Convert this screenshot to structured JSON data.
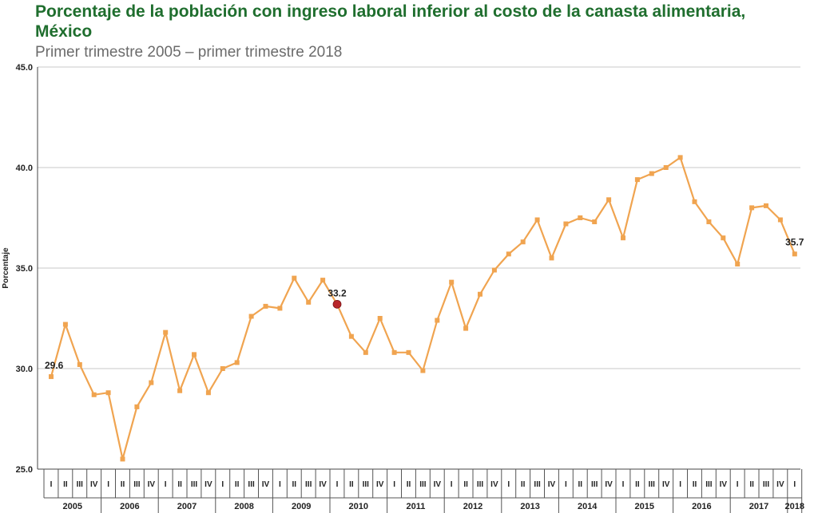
{
  "header": {
    "title": "Porcentaje de la población con ingreso laboral inferior al costo de la canasta alimentaria, México",
    "subtitle": "Primer trimestre 2005 – primer trimestre 2018"
  },
  "colors": {
    "title": "#1f6e2e",
    "line": "#f0a450",
    "grid": "#c8c8c8",
    "highlight_point": "#b8262a"
  },
  "chart_data": {
    "type": "line",
    "title": "Porcentaje de la población con ingreso laboral inferior al costo de la canasta alimentaria, México",
    "subtitle": "Primer trimestre 2005 – primer trimestre 2018",
    "xlabel": "",
    "ylabel": "Porcentaje",
    "ylim": [
      25,
      45
    ],
    "yticks": [
      "25.0",
      "30.0",
      "35.0",
      "40.0",
      "45.0"
    ],
    "grid": "horizontal",
    "years": [
      "2005",
      "2006",
      "2007",
      "2008",
      "2009",
      "2010",
      "2011",
      "2012",
      "2013",
      "2014",
      "2015",
      "2016",
      "2017",
      "2018"
    ],
    "quarters": [
      "I",
      "II",
      "III",
      "IV",
      "I",
      "II",
      "III",
      "IV",
      "I",
      "II",
      "III",
      "IV",
      "I",
      "II",
      "III",
      "IV",
      "I",
      "II",
      "III",
      "IV",
      "I",
      "II",
      "III",
      "IV",
      "I",
      "II",
      "III",
      "IV",
      "I",
      "II",
      "III",
      "IV",
      "I",
      "II",
      "III",
      "IV",
      "I",
      "II",
      "III",
      "IV",
      "I",
      "II",
      "III",
      "IV",
      "I",
      "II",
      "III",
      "IV",
      "I",
      "II",
      "III",
      "IV",
      "I"
    ],
    "series": [
      {
        "values": [
          29.6,
          32.2,
          30.2,
          28.7,
          28.8,
          25.5,
          28.1,
          29.3,
          31.8,
          28.9,
          30.7,
          28.8,
          30.0,
          30.3,
          32.6,
          33.1,
          33.0,
          34.5,
          33.3,
          34.4,
          33.2,
          31.6,
          30.8,
          32.5,
          30.8,
          30.8,
          29.9,
          32.4,
          34.3,
          32.0,
          33.7,
          34.9,
          35.7,
          36.3,
          37.4,
          35.5,
          37.2,
          37.5,
          37.3,
          38.4,
          36.5,
          39.4,
          39.7,
          40.0,
          40.5,
          38.3,
          37.3,
          36.5,
          35.2,
          38.0,
          38.1,
          37.4,
          35.7
        ]
      }
    ],
    "annotations": [
      {
        "index": 0,
        "label": "29.6"
      },
      {
        "index": 20,
        "label": "33.2"
      },
      {
        "index": 52,
        "label": "35.7"
      }
    ],
    "highlight_index": 20
  }
}
